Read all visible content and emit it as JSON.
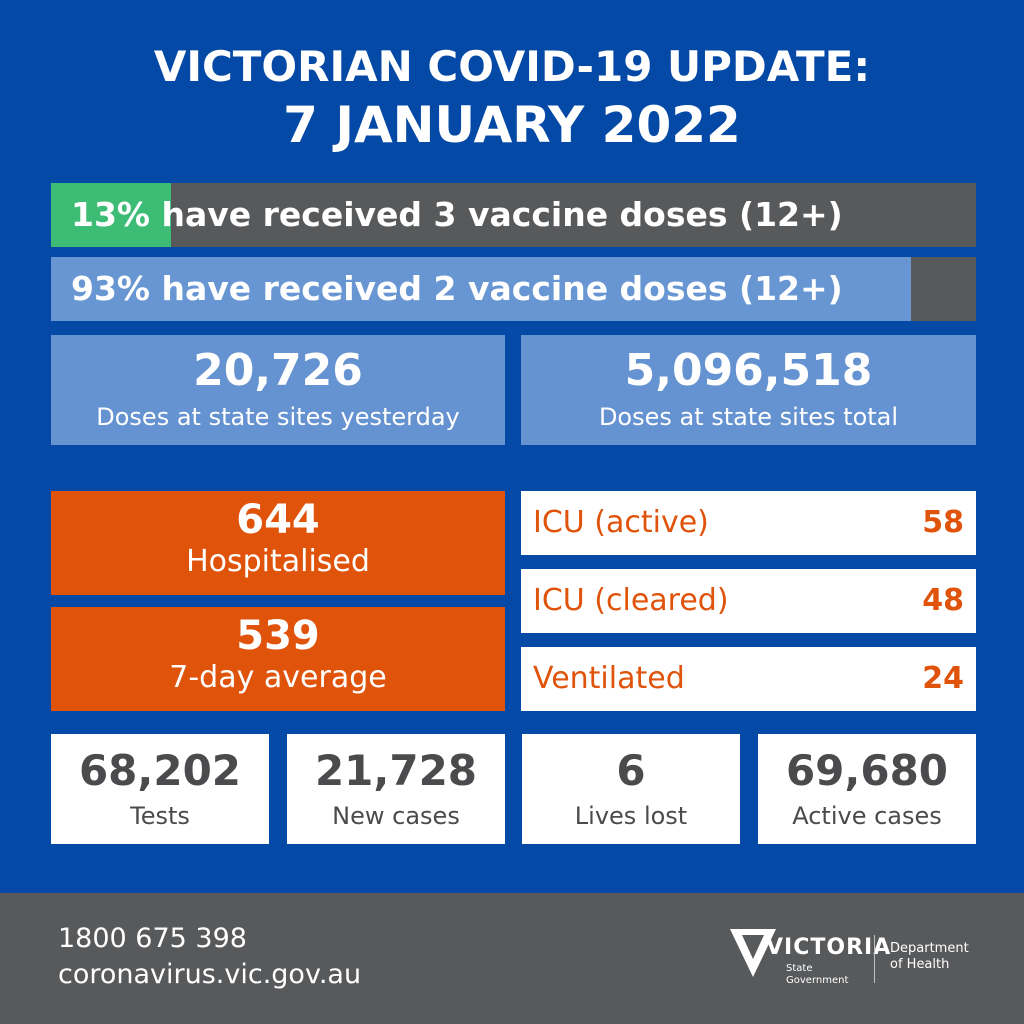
{
  "header": {
    "line1": "VICTORIAN COVID-19 UPDATE:",
    "line2": "7 JANUARY 2022"
  },
  "vaccination": [
    {
      "text": "13% have received 3 vaccine doses (12+)",
      "percent": 13
    },
    {
      "text": "93% have received 2 vaccine doses (12+)",
      "percent": 93
    }
  ],
  "doses": [
    {
      "value": "20,726",
      "label": "Doses at state sites yesterday"
    },
    {
      "value": "5,096,518",
      "label": "Doses at state sites total"
    }
  ],
  "hospital": [
    {
      "value": "644",
      "label": "Hospitalised"
    },
    {
      "value": "539",
      "label": "7-day average"
    }
  ],
  "icu": [
    {
      "label": "ICU (active)",
      "value": "58"
    },
    {
      "label": "ICU (cleared)",
      "value": "48"
    },
    {
      "label": "Ventilated",
      "value": "24"
    }
  ],
  "stats": [
    {
      "value": "68,202",
      "label": "Tests"
    },
    {
      "value": "21,728",
      "label": "New cases"
    },
    {
      "value": "6",
      "label": "Lives lost"
    },
    {
      "value": "69,680",
      "label": "Active cases"
    }
  ],
  "footer": {
    "phone": "1800 675 398",
    "url": "coronavirus.vic.gov.au",
    "logo_text": "VICTORIA",
    "logo_sub1": "State",
    "logo_sub2": "Government",
    "dept1": "Department",
    "dept2": "of Health"
  },
  "colors": {
    "background": "#0549a6",
    "green": "#3dbc76",
    "light_blue": "#6592d0",
    "orange": "#e0530b",
    "grey": "#58595b"
  }
}
